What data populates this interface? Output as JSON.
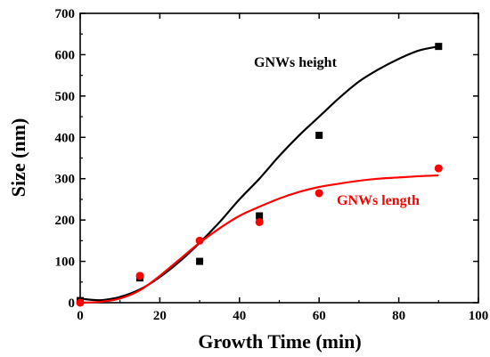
{
  "chart_data": {
    "type": "scatter",
    "xlabel": "Growth Time (min)",
    "ylabel": "Size (nm)",
    "xlim": [
      0,
      100
    ],
    "ylim": [
      0,
      700
    ],
    "xticks": [
      0,
      20,
      40,
      60,
      80,
      100
    ],
    "yticks": [
      0,
      100,
      200,
      300,
      400,
      500,
      600,
      700
    ],
    "grid": false,
    "legend": "none",
    "series": [
      {
        "label": "GNWs height",
        "marker": "square",
        "color": "#000000",
        "x": [
          0,
          15,
          30,
          45,
          60,
          90
        ],
        "y": [
          5,
          60,
          100,
          210,
          405,
          620
        ],
        "fit_curve": {
          "x": [
            0,
            5,
            10,
            15,
            20,
            25,
            30,
            35,
            40,
            45,
            50,
            55,
            60,
            65,
            70,
            75,
            80,
            85,
            90
          ],
          "y": [
            10,
            6,
            14,
            32,
            62,
            100,
            145,
            195,
            250,
            300,
            355,
            405,
            450,
            495,
            535,
            565,
            590,
            610,
            620
          ]
        }
      },
      {
        "label": "GNWs length",
        "marker": "circle",
        "color": "#ff0000",
        "x": [
          0,
          15,
          30,
          45,
          60,
          90
        ],
        "y": [
          0,
          65,
          150,
          195,
          265,
          325
        ],
        "fit_curve": {
          "x": [
            0,
            5,
            10,
            15,
            20,
            25,
            30,
            35,
            40,
            45,
            50,
            55,
            60,
            65,
            70,
            75,
            80,
            85,
            90
          ],
          "y": [
            0,
            2,
            10,
            30,
            65,
            105,
            145,
            180,
            210,
            232,
            252,
            268,
            280,
            288,
            295,
            300,
            303,
            306,
            308
          ]
        }
      }
    ]
  }
}
